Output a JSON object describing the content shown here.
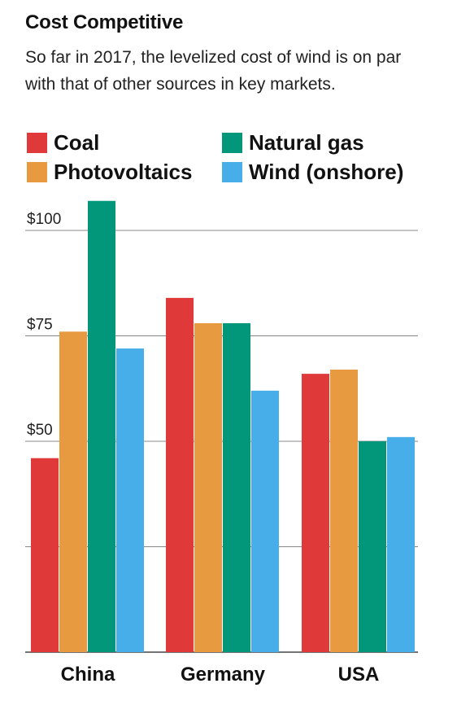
{
  "header": {
    "title": "Cost Competitive",
    "subtitle": "So far in 2017, the levelized cost of wind is on par with that of other sources in key markets."
  },
  "colors": {
    "Coal": "#e0393a",
    "Photovoltaics": "#e89a40",
    "Natural gas": "#02977b",
    "Wind (onshore)": "#47aeea"
  },
  "chart_data": {
    "type": "bar",
    "title": "Cost Competitive",
    "subtitle": "So far in 2017, the levelized cost of wind is on par with that of other sources in key markets.",
    "categories": [
      "China",
      "Germany",
      "USA"
    ],
    "series": [
      {
        "name": "Coal",
        "values": [
          46,
          84,
          66
        ]
      },
      {
        "name": "Photovoltaics",
        "values": [
          76,
          78,
          67
        ]
      },
      {
        "name": "Natural gas",
        "values": [
          107,
          78,
          50
        ]
      },
      {
        "name": "Wind (onshore)",
        "values": [
          72,
          62,
          51
        ]
      }
    ],
    "ylim": [
      0,
      100
    ],
    "yticks": [
      0,
      25,
      50,
      75,
      100
    ],
    "ytick_labels": [
      "",
      "",
      "$50",
      "$75",
      "$100"
    ],
    "xlabel": "",
    "ylabel": "",
    "grid": true,
    "legend": "top"
  }
}
